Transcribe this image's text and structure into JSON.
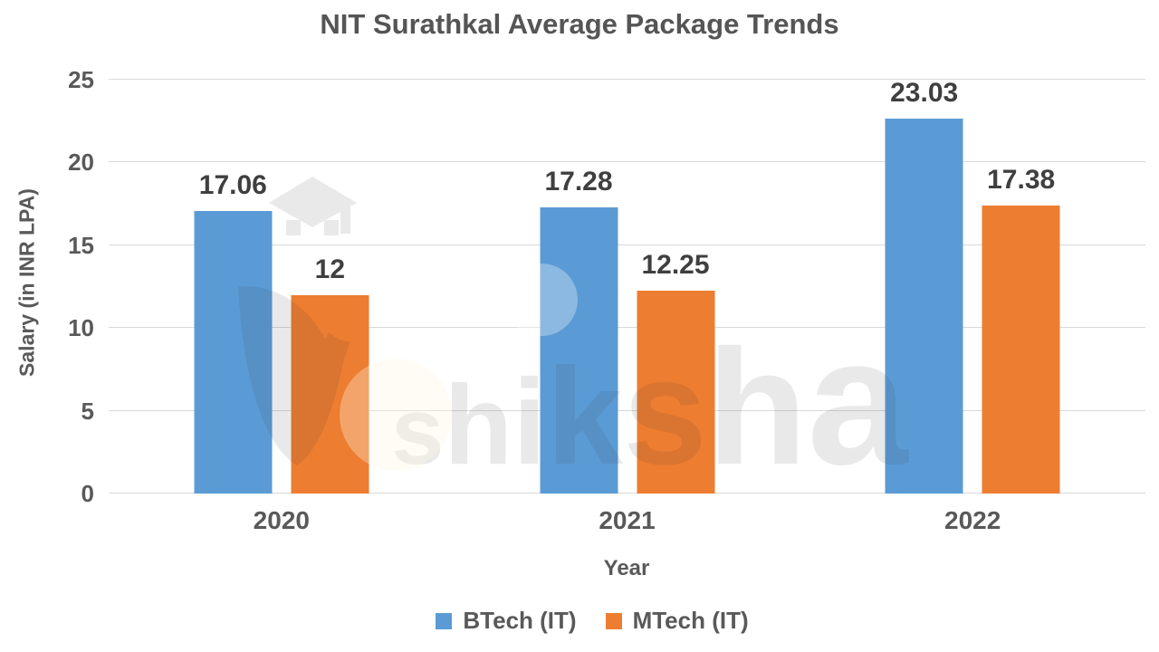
{
  "title": "NIT Surathkal Average Package Trends",
  "watermark": {
    "text": "shiksha"
  },
  "colors": {
    "btech_blue": "#5B9BD5",
    "mtech_orange": "#ED7D31",
    "gridline": "#D9D9D9",
    "axis_text": "#595959",
    "data_label_text": "#3F3F3F",
    "title_text": "#555555",
    "background": "#FFFFFF"
  },
  "chart_data": {
    "type": "bar",
    "title": "NIT Surathkal Average Package Trends",
    "categories": [
      "2020",
      "2021",
      "2022"
    ],
    "series": [
      {
        "name": "BTech (IT)",
        "color": "#5B9BD5",
        "values": [
          17.06,
          17.28,
          23.03
        ],
        "data_labels": [
          "17.06",
          "17.28",
          "23.03"
        ]
      },
      {
        "name": "MTech (IT)",
        "color": "#ED7D31",
        "values": [
          12,
          12.25,
          17.38
        ],
        "data_labels": [
          "12",
          "12.25",
          "17.38"
        ]
      }
    ],
    "xlabel": "Year",
    "ylabel": "Salary (in INR LPA)",
    "ylim": [
      0,
      25
    ],
    "yticks": [
      0,
      5,
      10,
      15,
      20,
      25
    ],
    "grid": true,
    "legend_position": "bottom"
  }
}
